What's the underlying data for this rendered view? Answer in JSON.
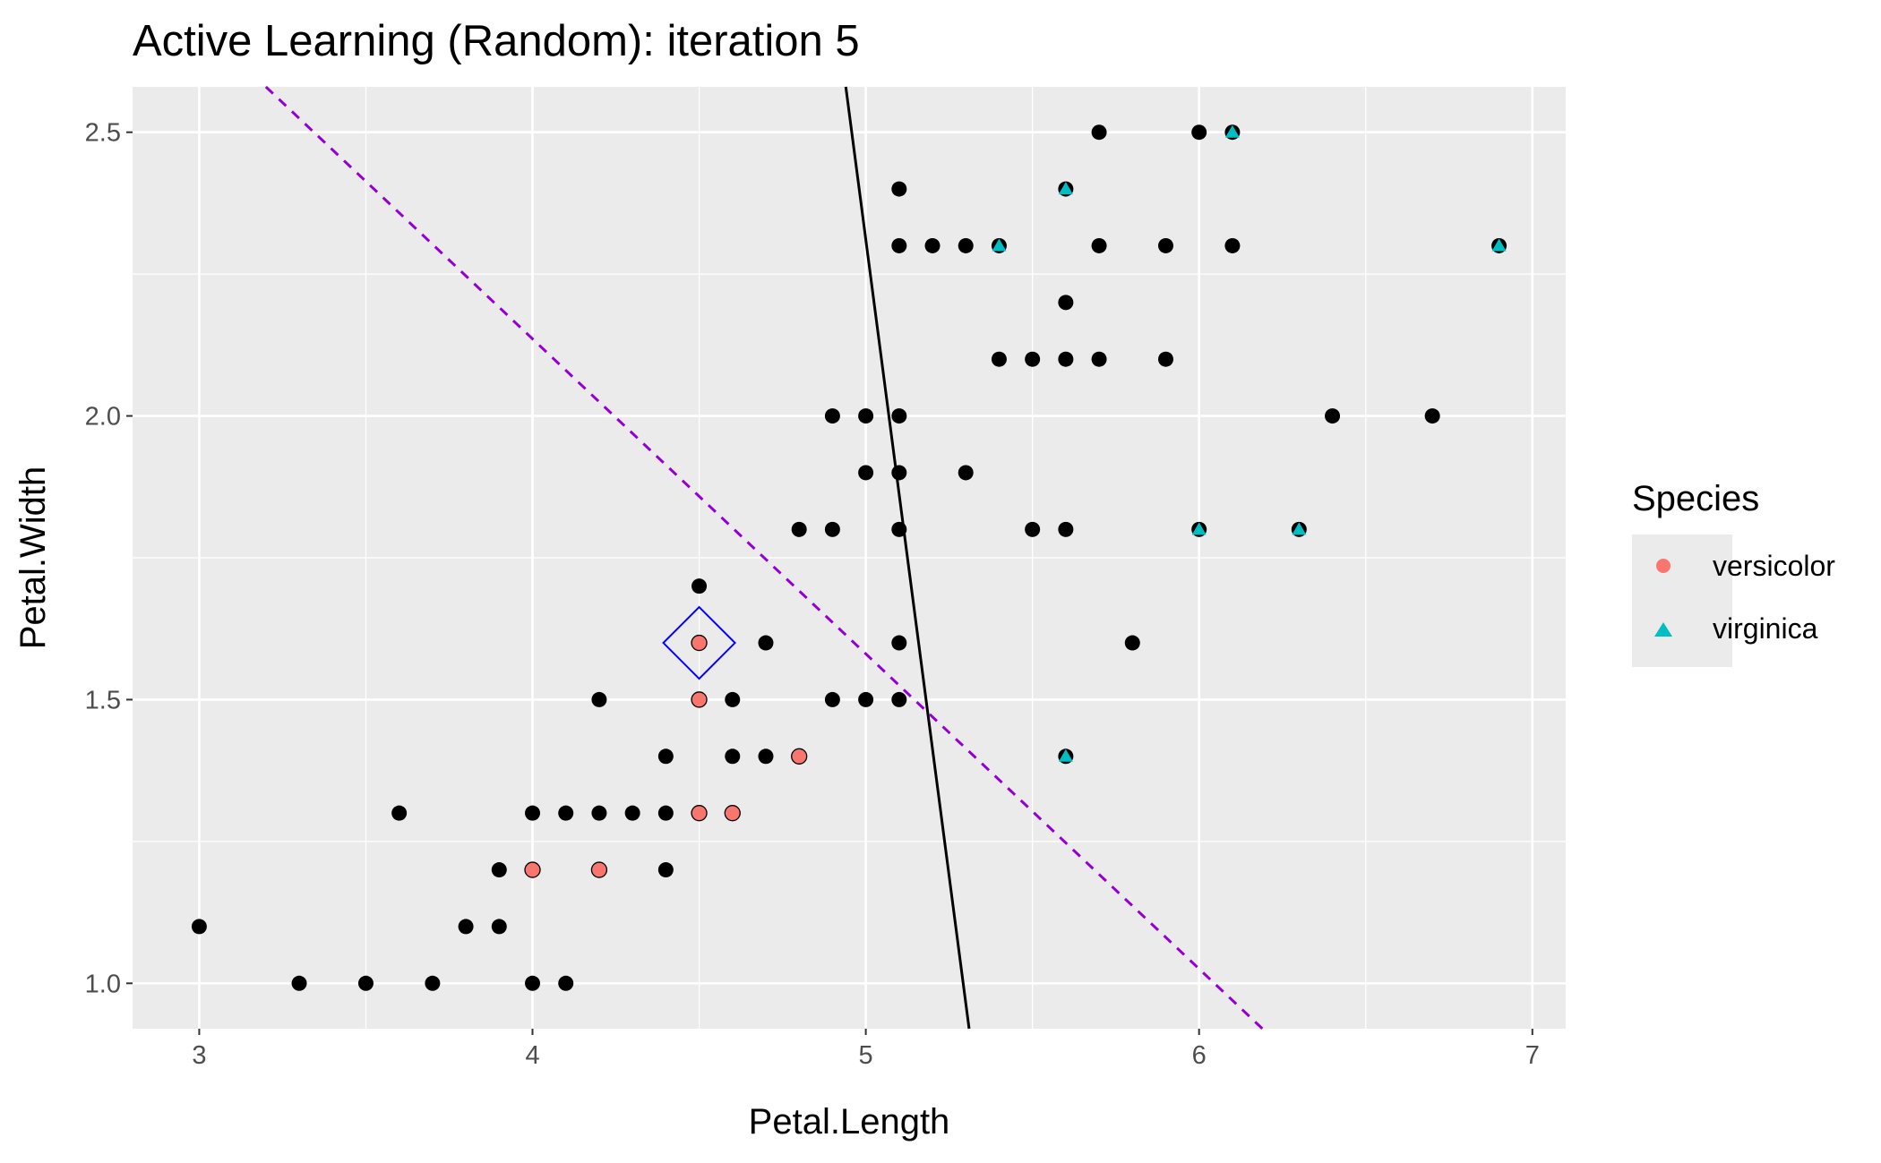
{
  "chart_data": {
    "type": "scatter",
    "title": "Active Learning (Random): iteration 5",
    "xlabel": "Petal.Length",
    "ylabel": "Petal.Width",
    "xlim": [
      2.8,
      7.1
    ],
    "ylim": [
      0.92,
      2.58
    ],
    "x_ticks": [
      3,
      4,
      5,
      6,
      7
    ],
    "y_ticks": [
      1.0,
      1.5,
      2.0,
      2.5
    ],
    "x_tick_labels": [
      "3",
      "4",
      "5",
      "6",
      "7"
    ],
    "y_tick_labels": [
      "1.0",
      "1.5",
      "2.0",
      "2.5"
    ],
    "grid": true,
    "legend": {
      "title": "Species",
      "position": "right",
      "entries": [
        {
          "label": "versicolor",
          "color": "#F8766D",
          "shape": "circle"
        },
        {
          "label": "virginica",
          "color": "#00BFC4",
          "shape": "triangle"
        }
      ]
    },
    "unlabeled": {
      "name": "unlabeled",
      "color": "#000000",
      "points": [
        [
          3.0,
          1.1
        ],
        [
          3.3,
          1.0
        ],
        [
          3.5,
          1.0
        ],
        [
          3.6,
          1.3
        ],
        [
          3.7,
          1.0
        ],
        [
          3.8,
          1.1
        ],
        [
          3.9,
          1.1
        ],
        [
          3.9,
          1.2
        ],
        [
          4.0,
          1.0
        ],
        [
          4.0,
          1.3
        ],
        [
          4.1,
          1.0
        ],
        [
          4.1,
          1.3
        ],
        [
          4.2,
          1.3
        ],
        [
          4.2,
          1.5
        ],
        [
          4.3,
          1.3
        ],
        [
          4.4,
          1.2
        ],
        [
          4.4,
          1.3
        ],
        [
          4.4,
          1.4
        ],
        [
          4.5,
          1.7
        ],
        [
          4.6,
          1.4
        ],
        [
          4.6,
          1.5
        ],
        [
          4.7,
          1.4
        ],
        [
          4.7,
          1.6
        ],
        [
          4.8,
          1.8
        ],
        [
          4.9,
          1.5
        ],
        [
          4.9,
          1.8
        ],
        [
          4.9,
          2.0
        ],
        [
          5.0,
          1.5
        ],
        [
          5.0,
          1.9
        ],
        [
          5.0,
          2.0
        ],
        [
          5.1,
          1.5
        ],
        [
          5.1,
          1.6
        ],
        [
          5.1,
          1.8
        ],
        [
          5.1,
          1.9
        ],
        [
          5.1,
          2.0
        ],
        [
          5.1,
          2.3
        ],
        [
          5.1,
          2.4
        ],
        [
          5.2,
          2.3
        ],
        [
          5.3,
          1.9
        ],
        [
          5.3,
          2.3
        ],
        [
          5.4,
          2.1
        ],
        [
          5.5,
          1.8
        ],
        [
          5.5,
          2.1
        ],
        [
          5.6,
          1.8
        ],
        [
          5.6,
          2.1
        ],
        [
          5.6,
          2.2
        ],
        [
          5.7,
          2.1
        ],
        [
          5.7,
          2.3
        ],
        [
          5.7,
          2.5
        ],
        [
          5.8,
          1.6
        ],
        [
          5.9,
          2.1
        ],
        [
          5.9,
          2.3
        ],
        [
          6.0,
          2.5
        ],
        [
          6.1,
          2.3
        ],
        [
          6.4,
          2.0
        ],
        [
          6.7,
          2.0
        ]
      ]
    },
    "series": [
      {
        "name": "versicolor",
        "color": "#F8766D",
        "shape": "circle",
        "points": [
          [
            4.0,
            1.2
          ],
          [
            4.2,
            1.2
          ],
          [
            4.5,
            1.3
          ],
          [
            4.5,
            1.5
          ],
          [
            4.5,
            1.6
          ],
          [
            4.6,
            1.3
          ],
          [
            4.8,
            1.4
          ]
        ]
      },
      {
        "name": "virginica",
        "color": "#00BFC4",
        "shape": "triangle",
        "points": [
          [
            5.4,
            2.3
          ],
          [
            5.6,
            1.4
          ],
          [
            5.6,
            2.4
          ],
          [
            6.0,
            1.8
          ],
          [
            6.1,
            2.5
          ],
          [
            6.3,
            1.8
          ],
          [
            6.9,
            2.3
          ]
        ]
      }
    ],
    "highlighted_point": {
      "x": 4.5,
      "y": 1.6,
      "color": "#0000FF",
      "shape": "diamond"
    },
    "lines": [
      {
        "style": "solid",
        "color": "#000000",
        "from": [
          4.94,
          2.58
        ],
        "to": [
          5.31,
          0.92
        ]
      },
      {
        "style": "dashed",
        "color": "#9400D3",
        "from": [
          3.2,
          2.58
        ],
        "to": [
          6.19,
          0.92
        ]
      }
    ]
  }
}
